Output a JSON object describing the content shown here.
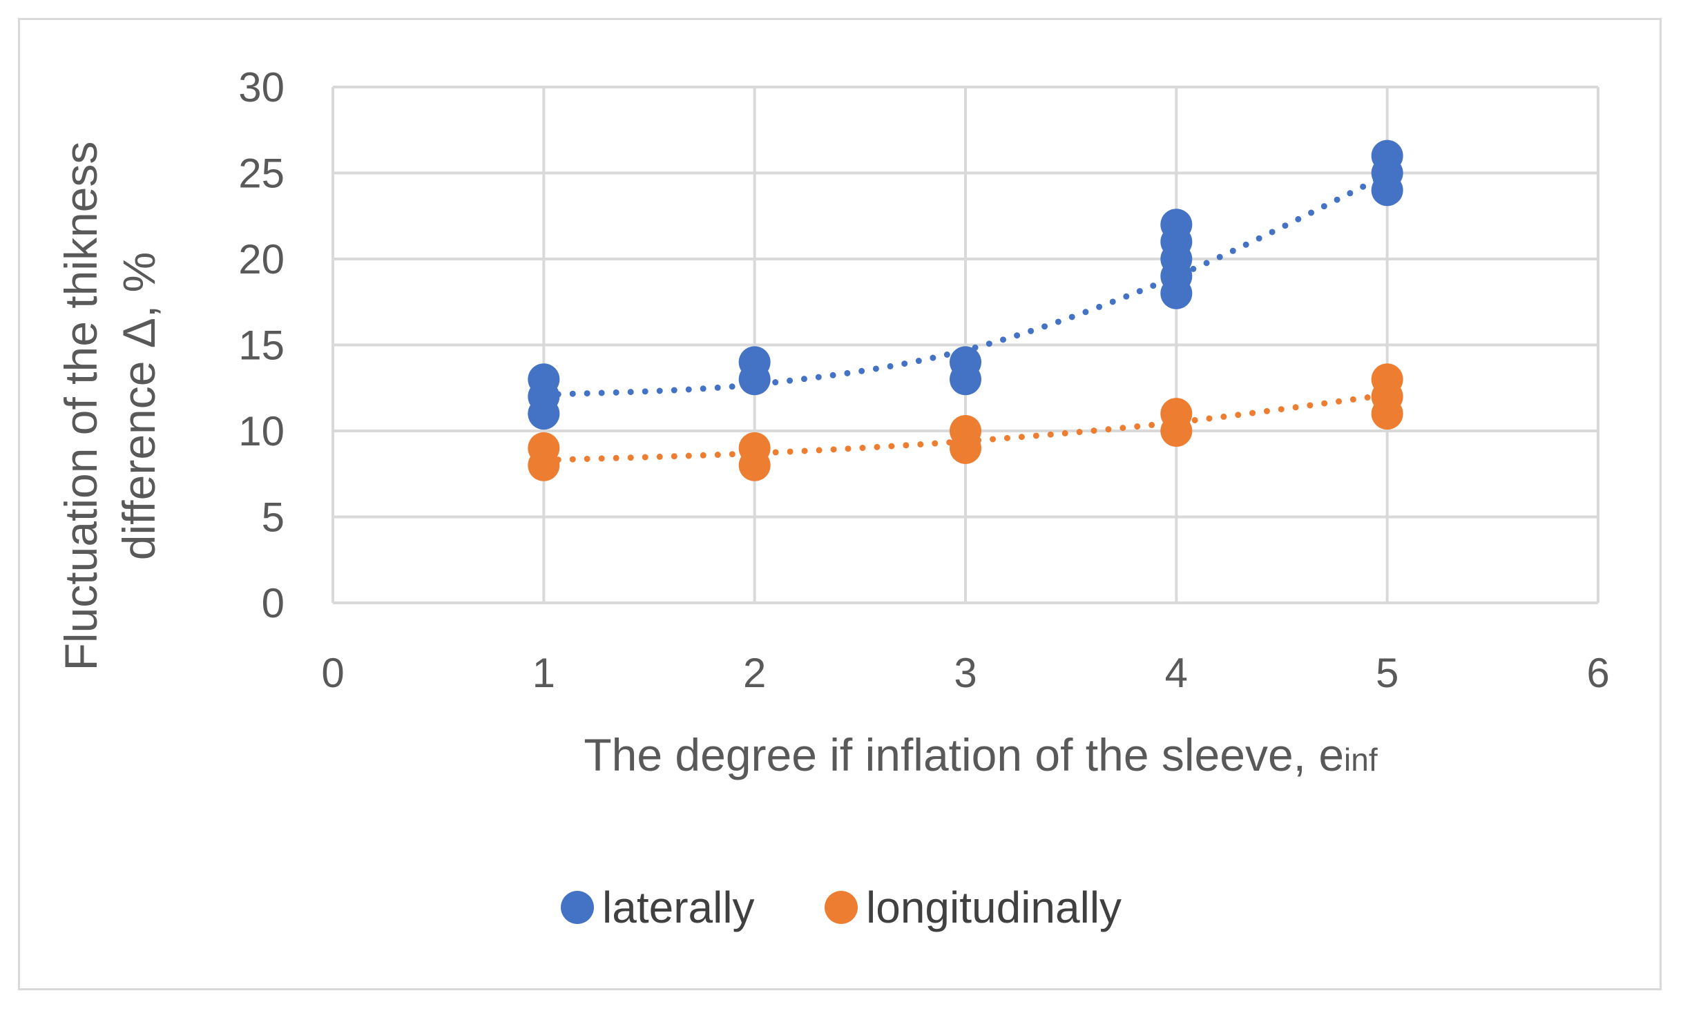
{
  "chart_data": {
    "type": "scatter",
    "title": "",
    "xlabel": "The degree if inflation of the sleeve, e",
    "xlabel_sub": "inf",
    "ylabel_line1": "Fluctuation of the thikness",
    "ylabel_line2": "difference Δ, %",
    "xlim": [
      0,
      6
    ],
    "ylim": [
      0,
      30
    ],
    "xticks": [
      0,
      1,
      2,
      3,
      4,
      5,
      6
    ],
    "yticks": [
      0,
      5,
      10,
      15,
      20,
      25,
      30
    ],
    "grid": true,
    "legend_position": "bottom",
    "series": [
      {
        "name": "laterally",
        "color": "#4472C4",
        "x": [
          1,
          1,
          1,
          2,
          2,
          3,
          3,
          4,
          4,
          4,
          4,
          4,
          5,
          5,
          5
        ],
        "y": [
          11,
          12,
          13,
          13,
          14,
          13,
          14,
          18,
          19,
          20,
          21,
          22,
          24,
          25,
          26
        ],
        "trendline": "exponential",
        "trend_points": [
          [
            1,
            12.1
          ],
          [
            2,
            12.7
          ],
          [
            3,
            14.7
          ],
          [
            4,
            19.0
          ],
          [
            5,
            24.9
          ]
        ]
      },
      {
        "name": "longitudinally",
        "color": "#ED7D31",
        "x": [
          1,
          1,
          2,
          2,
          3,
          3,
          4,
          4,
          5,
          5,
          5
        ],
        "y": [
          8,
          9,
          8,
          9,
          9,
          10,
          10,
          11,
          11,
          12,
          13
        ],
        "trendline": "exponential",
        "trend_points": [
          [
            1,
            8.3
          ],
          [
            2,
            8.7
          ],
          [
            3,
            9.4
          ],
          [
            4,
            10.5
          ],
          [
            5,
            12.1
          ]
        ]
      }
    ]
  }
}
